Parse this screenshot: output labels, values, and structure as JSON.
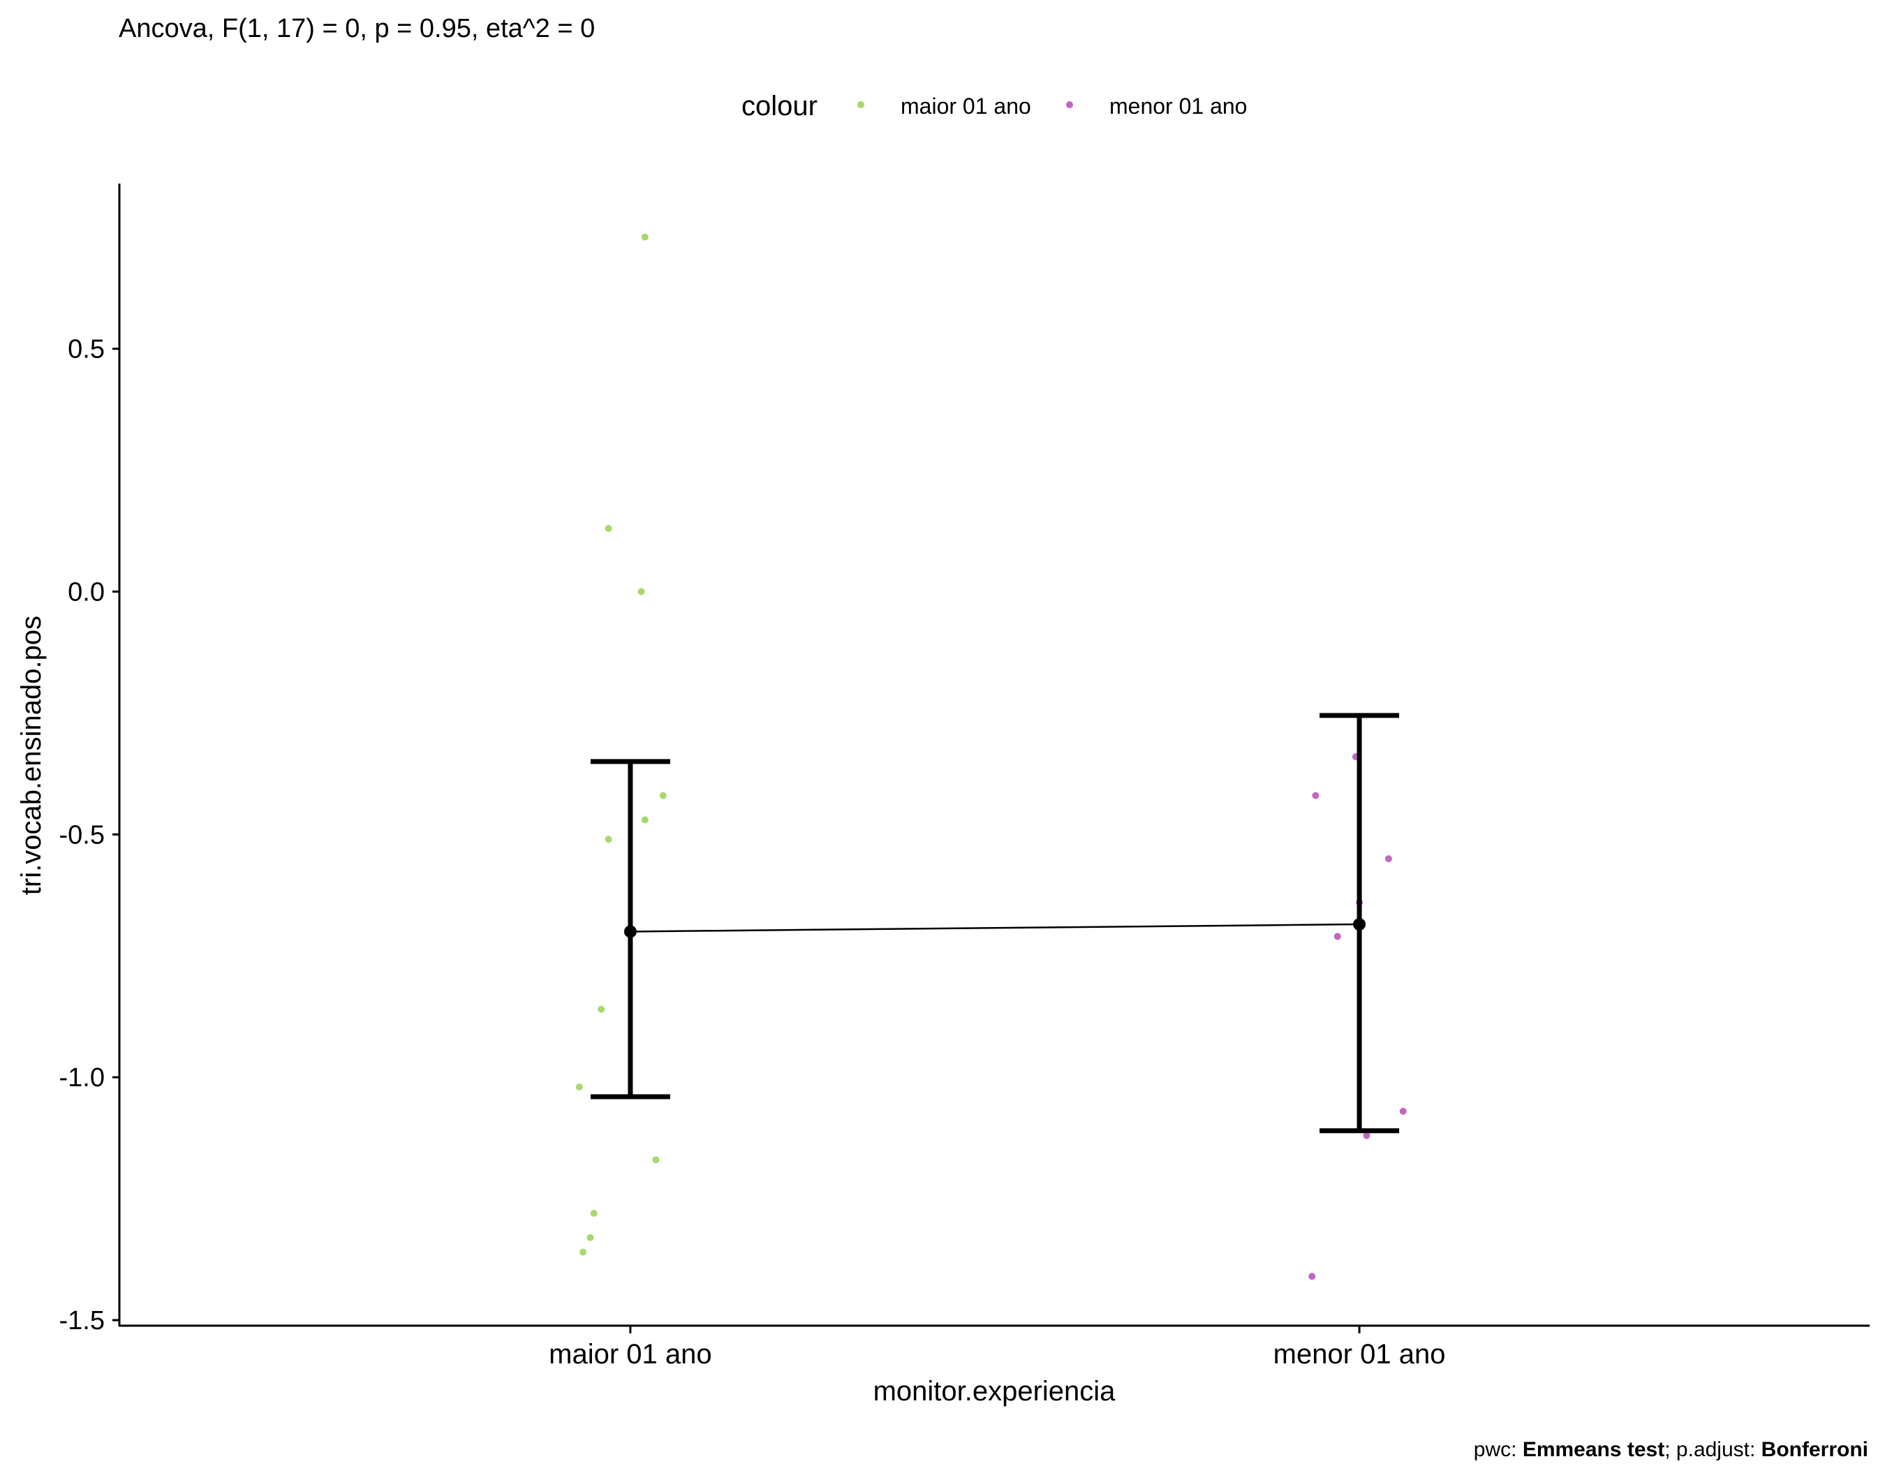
{
  "chart_data": {
    "type": "scatter",
    "title": "Ancova, F(1, 17) = 0, p = 0.95, eta^2 = 0",
    "xlabel": "monitor.experiencia",
    "ylabel": "tri.vocab.ensinado.pos",
    "categories": [
      "maior 01 ano",
      "menor 01 ano"
    ],
    "ylim": [
      -1.51,
      0.84
    ],
    "yticks": [
      -1.5,
      -1.0,
      -0.5,
      0.0,
      0.5
    ],
    "ytick_labels": [
      "-1.5",
      "-1.0",
      "-0.5",
      "0.0",
      "0.5"
    ],
    "legend": {
      "title": "colour",
      "position": "top",
      "items": [
        {
          "label": "maior 01 ano",
          "color": "#a6d96a"
        },
        {
          "label": "menor 01 ano",
          "color": "#c266c2"
        }
      ]
    },
    "series": [
      {
        "name": "maior 01 ano",
        "color": "#a6d96a",
        "points": [
          {
            "x": 0.02,
            "y": 0.73
          },
          {
            "x": -0.03,
            "y": 0.13
          },
          {
            "x": 0.015,
            "y": 0.0
          },
          {
            "x": 0.045,
            "y": -0.42
          },
          {
            "x": 0.02,
            "y": -0.47
          },
          {
            "x": -0.03,
            "y": -0.51
          },
          {
            "x": -0.04,
            "y": -0.86
          },
          {
            "x": -0.07,
            "y": -1.02
          },
          {
            "x": 0.035,
            "y": -1.17
          },
          {
            "x": -0.05,
            "y": -1.28
          },
          {
            "x": -0.055,
            "y": -1.33
          },
          {
            "x": -0.065,
            "y": -1.36
          }
        ]
      },
      {
        "name": "menor 01 ano",
        "color": "#c266c2",
        "points": [
          {
            "x": -0.005,
            "y": -0.34
          },
          {
            "x": -0.06,
            "y": -0.42
          },
          {
            "x": 0.04,
            "y": -0.55
          },
          {
            "x": 0.0,
            "y": -0.64
          },
          {
            "x": -0.03,
            "y": -0.71
          },
          {
            "x": 0.06,
            "y": -1.07
          },
          {
            "x": 0.01,
            "y": -1.12
          },
          {
            "x": -0.065,
            "y": -1.41
          }
        ]
      }
    ],
    "means": [
      {
        "category": "maior 01 ano",
        "mean": -0.7,
        "lower": -1.04,
        "upper": -0.35
      },
      {
        "category": "menor 01 ano",
        "mean": -0.685,
        "lower": -1.11,
        "upper": -0.255
      }
    ]
  },
  "caption": {
    "prefix": "pwc: ",
    "test": "Emmeans test",
    "mid": "; p.adjust: ",
    "adjust": "Bonferroni"
  }
}
